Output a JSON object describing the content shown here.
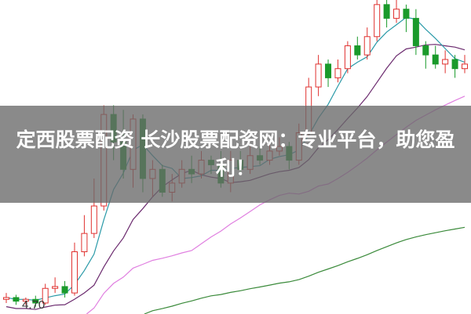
{
  "banner": {
    "title": "定西股票配资 长沙股票配资网：专业平台，助您盈利！"
  },
  "chart_data": {
    "type": "candlestick",
    "low_label": "4.70",
    "ylim": [
      4.62,
      8.05
    ],
    "grid": false,
    "colors": {
      "up": "#e0312f",
      "down": "#1a9a2b",
      "ma5": "#2a9aa8",
      "ma10": "#6b2a6e",
      "ma20": "#e07fe0",
      "ma60": "#3a8a3a"
    },
    "candles": [
      [
        4.78,
        4.8,
        4.85,
        4.74
      ],
      [
        4.8,
        4.76,
        4.83,
        4.72
      ],
      [
        4.76,
        4.78,
        4.8,
        4.72
      ],
      [
        4.78,
        4.74,
        4.82,
        4.7
      ],
      [
        4.74,
        4.9,
        4.95,
        4.72
      ],
      [
        4.9,
        4.92,
        5.02,
        4.85
      ],
      [
        4.92,
        4.85,
        4.98,
        4.8
      ],
      [
        4.85,
        5.3,
        5.4,
        4.82
      ],
      [
        5.3,
        5.5,
        5.7,
        5.25
      ],
      [
        5.5,
        5.8,
        6.1,
        5.45
      ],
      [
        5.8,
        6.8,
        6.9,
        5.75
      ],
      [
        6.8,
        6.5,
        6.9,
        6.3
      ],
      [
        6.5,
        6.2,
        6.85,
        6.1
      ],
      [
        6.2,
        6.75,
        6.8,
        6.0
      ],
      [
        6.75,
        6.1,
        6.8,
        5.95
      ],
      [
        6.1,
        6.2,
        6.3,
        5.9
      ],
      [
        6.2,
        5.95,
        6.25,
        5.9
      ],
      [
        5.95,
        6.05,
        6.15,
        5.85
      ],
      [
        6.05,
        6.2,
        6.3,
        6.0
      ],
      [
        6.2,
        6.15,
        6.35,
        6.05
      ],
      [
        6.15,
        6.3,
        6.4,
        6.1
      ],
      [
        6.3,
        6.25,
        6.35,
        6.15
      ],
      [
        6.25,
        6.05,
        6.4,
        6.0
      ],
      [
        6.05,
        6.3,
        6.4,
        5.95
      ],
      [
        6.3,
        6.2,
        6.4,
        6.15
      ],
      [
        6.2,
        6.35,
        6.45,
        6.15
      ],
      [
        6.35,
        6.3,
        6.45,
        6.25
      ],
      [
        6.3,
        6.4,
        6.5,
        6.25
      ],
      [
        6.4,
        6.45,
        6.55,
        6.35
      ],
      [
        6.45,
        6.3,
        6.5,
        6.2
      ],
      [
        6.3,
        6.6,
        6.7,
        6.25
      ],
      [
        6.6,
        7.1,
        7.2,
        6.55
      ],
      [
        7.1,
        7.35,
        7.45,
        7.0
      ],
      [
        7.35,
        7.2,
        7.4,
        7.1
      ],
      [
        7.2,
        7.3,
        7.4,
        7.15
      ],
      [
        7.3,
        7.55,
        7.6,
        7.25
      ],
      [
        7.55,
        7.45,
        7.65,
        7.4
      ],
      [
        7.45,
        7.65,
        7.75,
        7.4
      ],
      [
        7.65,
        8.0,
        8.1,
        7.6
      ],
      [
        8.0,
        7.85,
        8.05,
        7.75
      ],
      [
        7.85,
        7.95,
        8.05,
        7.8
      ],
      [
        7.95,
        7.85,
        8.0,
        7.7
      ],
      [
        7.85,
        7.55,
        7.95,
        7.45
      ],
      [
        7.55,
        7.45,
        7.6,
        7.3
      ],
      [
        7.45,
        7.35,
        7.55,
        7.3
      ],
      [
        7.35,
        7.4,
        7.5,
        7.25
      ],
      [
        7.4,
        7.3,
        7.45,
        7.2
      ],
      [
        7.3,
        7.35,
        7.45,
        7.25
      ]
    ]
  }
}
